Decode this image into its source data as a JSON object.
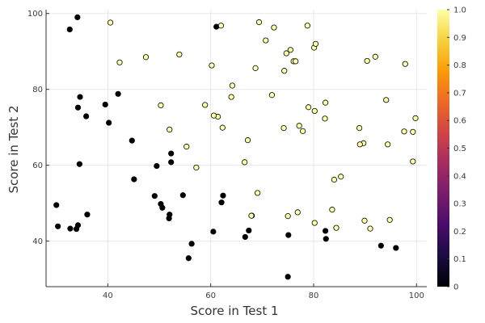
{
  "chart_data": {
    "type": "scatter",
    "title": "",
    "xlabel": "Score in Test 1",
    "ylabel": "Score in Test 2",
    "xlim": [
      28,
      102
    ],
    "ylim": [
      28,
      101
    ],
    "x_ticks": [
      40,
      60,
      80,
      100
    ],
    "y_ticks": [
      40,
      60,
      80,
      100
    ],
    "grid": true,
    "legend": "none",
    "colorbar": {
      "range": [
        0,
        1
      ],
      "ticks": [
        "0",
        "0.1",
        "0.2",
        "0.3",
        "0.4",
        "0.5",
        "0.6",
        "0.7",
        "0.8",
        "0.9",
        "1.0"
      ],
      "colormap": "inferno",
      "gradient_stops": [
        "#000004",
        "#1b0c41",
        "#4a0c6b",
        "#781c6d",
        "#a52c60",
        "#cf4446",
        "#ed6925",
        "#fb9b06",
        "#f7d13d",
        "#fcffa4"
      ]
    },
    "series": [
      {
        "label_value": 0,
        "color": "#000000",
        "points": [
          [
            34.6,
            78.0
          ],
          [
            30.3,
            43.9
          ],
          [
            35.8,
            72.9
          ],
          [
            45.1,
            56.3
          ],
          [
            39.5,
            76.0
          ],
          [
            61.1,
            96.5
          ],
          [
            30.0,
            49.5
          ],
          [
            33.9,
            43.2
          ],
          [
            34.5,
            60.3
          ],
          [
            40.2,
            71.2
          ],
          [
            44.7,
            66.5
          ],
          [
            49.1,
            51.9
          ],
          [
            36.0,
            47.0
          ],
          [
            32.6,
            95.8
          ],
          [
            32.7,
            43.3
          ],
          [
            34.1,
            99.0
          ],
          [
            50.3,
            49.8
          ],
          [
            52.0,
            47.0
          ],
          [
            49.5,
            59.8
          ],
          [
            50.6,
            48.8
          ],
          [
            51.9,
            46.0
          ],
          [
            52.3,
            63.1
          ],
          [
            54.6,
            52.1
          ],
          [
            55.7,
            35.5
          ],
          [
            56.3,
            39.3
          ],
          [
            60.5,
            42.5
          ],
          [
            62.1,
            50.2
          ],
          [
            62.4,
            52.0
          ],
          [
            66.7,
            41.1
          ],
          [
            67.4,
            42.8
          ],
          [
            68.0,
            46.7
          ],
          [
            75.1,
            41.6
          ],
          [
            75.0,
            30.6
          ],
          [
            82.3,
            42.7
          ],
          [
            82.4,
            40.6
          ],
          [
            93.1,
            38.8
          ],
          [
            96.0,
            38.2
          ],
          [
            34.2,
            75.2
          ],
          [
            42.0,
            78.8
          ],
          [
            52.3,
            60.8
          ],
          [
            34.2,
            44.2
          ]
        ]
      },
      {
        "label_value": 1,
        "color": "#fcffa4",
        "points": [
          [
            60.2,
            86.3
          ],
          [
            79.0,
            75.3
          ],
          [
            75.0,
            46.6
          ],
          [
            76.1,
            87.4
          ],
          [
            84.4,
            43.5
          ],
          [
            82.3,
            76.5
          ],
          [
            69.4,
            97.7
          ],
          [
            53.9,
            89.2
          ],
          [
            69.1,
            52.7
          ],
          [
            70.7,
            92.9
          ],
          [
            76.9,
            47.6
          ],
          [
            67.9,
            46.7
          ],
          [
            89.7,
            65.8
          ],
          [
            80.2,
            44.8
          ],
          [
            94.1,
            77.2
          ],
          [
            90.4,
            87.5
          ],
          [
            97.6,
            68.9
          ],
          [
            74.2,
            69.8
          ],
          [
            89.9,
            45.4
          ],
          [
            99.3,
            68.8
          ],
          [
            99.8,
            72.4
          ],
          [
            92.0,
            88.6
          ],
          [
            97.8,
            86.7
          ],
          [
            76.5,
            87.4
          ],
          [
            74.7,
            89.5
          ],
          [
            75.5,
            90.4
          ],
          [
            80.1,
            91.0
          ],
          [
            83.6,
            48.3
          ],
          [
            88.9,
            69.8
          ],
          [
            94.4,
            65.5
          ],
          [
            99.3,
            61.0
          ],
          [
            91.0,
            43.3
          ],
          [
            94.8,
            45.6
          ],
          [
            77.9,
            69.0
          ],
          [
            68.7,
            85.6
          ],
          [
            62.0,
            96.8
          ],
          [
            61.4,
            72.8
          ],
          [
            60.6,
            73.1
          ],
          [
            62.3,
            69.9
          ],
          [
            50.3,
            75.8
          ],
          [
            52.0,
            69.4
          ],
          [
            55.3,
            64.9
          ],
          [
            57.2,
            59.4
          ],
          [
            58.9,
            75.9
          ],
          [
            64.2,
            81.0
          ],
          [
            64.0,
            78.0
          ],
          [
            67.2,
            66.6
          ],
          [
            66.6,
            60.8
          ],
          [
            71.9,
            78.5
          ],
          [
            72.3,
            96.3
          ],
          [
            74.3,
            84.9
          ],
          [
            77.2,
            70.4
          ],
          [
            78.8,
            96.8
          ],
          [
            80.4,
            92.0
          ],
          [
            82.2,
            72.3
          ],
          [
            47.4,
            88.5
          ],
          [
            40.5,
            97.6
          ],
          [
            42.3,
            87.1
          ],
          [
            80.2,
            74.3
          ],
          [
            84.0,
            56.2
          ],
          [
            85.3,
            57.0
          ],
          [
            89.0,
            65.5
          ]
        ]
      }
    ]
  }
}
